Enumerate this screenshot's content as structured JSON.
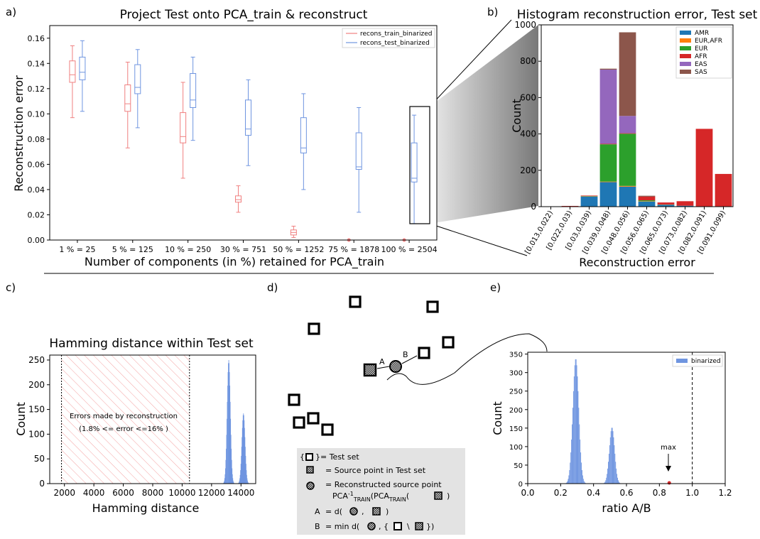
{
  "panels": {
    "a": "a)",
    "b": "b)",
    "c": "c)",
    "d": "d)",
    "e": "e)"
  },
  "chart_data": [
    {
      "id": "a",
      "type": "box",
      "title": "Project Test onto PCA_train & reconstruct",
      "xlabel": "Number of components (in %) retained for PCA_train",
      "ylabel": "Reconstruction error",
      "categories": [
        "1 % = 25",
        "5 % = 125",
        "10 % = 250",
        "30 % = 751",
        "50 % = 1252",
        "75 % = 1878",
        "100 % = 2504"
      ],
      "ylim": [
        0,
        0.17
      ],
      "yticks": [
        "0.00",
        "0.02",
        "0.04",
        "0.06",
        "0.08",
        "0.10",
        "0.12",
        "0.14",
        "0.16"
      ],
      "legend_position": "top-right",
      "series": [
        {
          "name": "recons_train_binarized",
          "color": "#f08080",
          "boxes": [
            {
              "min": 0.097,
              "q1": 0.125,
              "median": 0.131,
              "q3": 0.142,
              "max": 0.154
            },
            {
              "min": 0.073,
              "q1": 0.102,
              "median": 0.108,
              "q3": 0.123,
              "max": 0.141
            },
            {
              "min": 0.049,
              "q1": 0.077,
              "median": 0.082,
              "q3": 0.101,
              "max": 0.125
            },
            {
              "min": 0.022,
              "q1": 0.03,
              "median": 0.032,
              "q3": 0.035,
              "max": 0.043
            },
            {
              "min": 0.002,
              "q1": 0.004,
              "median": 0.006,
              "q3": 0.008,
              "max": 0.011
            },
            {
              "min": 0.0,
              "q1": 0.0,
              "median": 0.0,
              "q3": 0.0,
              "max": 0.0
            },
            {
              "min": 0.0,
              "q1": 0.0,
              "median": 0.0,
              "q3": 0.0,
              "max": 0.0
            }
          ]
        },
        {
          "name": "recons_test_binarized",
          "color": "#6f95e0",
          "boxes": [
            {
              "min": 0.102,
              "q1": 0.127,
              "median": 0.133,
              "q3": 0.145,
              "max": 0.158
            },
            {
              "min": 0.089,
              "q1": 0.116,
              "median": 0.121,
              "q3": 0.139,
              "max": 0.151
            },
            {
              "min": 0.079,
              "q1": 0.105,
              "median": 0.111,
              "q3": 0.132,
              "max": 0.145
            },
            {
              "min": 0.059,
              "q1": 0.083,
              "median": 0.088,
              "q3": 0.111,
              "max": 0.127
            },
            {
              "min": 0.04,
              "q1": 0.069,
              "median": 0.073,
              "q3": 0.097,
              "max": 0.116
            },
            {
              "min": 0.022,
              "q1": 0.056,
              "median": 0.058,
              "q3": 0.085,
              "max": 0.105
            },
            {
              "min": 0.013,
              "q1": 0.046,
              "median": 0.049,
              "q3": 0.077,
              "max": 0.099
            }
          ]
        }
      ]
    },
    {
      "id": "b",
      "type": "bar",
      "stacked": true,
      "title": "Histogram reconstruction error, Test set",
      "xlabel": "Reconstruction error",
      "ylabel": "Count",
      "categories": [
        "[0.013,0.022)",
        "[0.022,0.03)",
        "[0.03,0.039)",
        "[0.039,0.048)",
        "[0.048,0.056)",
        "[0.056,0.065)",
        "[0.065,0.073)",
        "[0.073,0.082)",
        "[0.082,0.091)",
        "[0.091,0.099)"
      ],
      "ylim": [
        0,
        1000
      ],
      "yticks": [
        "0",
        "200",
        "400",
        "600",
        "800",
        "1000"
      ],
      "legend_position": "top-right",
      "series": [
        {
          "name": "AMR",
          "color": "#1f77b4",
          "values": [
            1,
            2,
            55,
            135,
            110,
            28,
            10,
            5,
            0,
            0
          ]
        },
        {
          "name": "EUR,AFR",
          "color": "#ff7f0e",
          "values": [
            0,
            0,
            1,
            3,
            4,
            2,
            1,
            0,
            0,
            0
          ]
        },
        {
          "name": "EUR",
          "color": "#2ca02c",
          "values": [
            0,
            0,
            2,
            205,
            287,
            5,
            1,
            0,
            0,
            0
          ]
        },
        {
          "name": "AFR",
          "color": "#d62728",
          "values": [
            0,
            2,
            3,
            3,
            3,
            20,
            11,
            25,
            428,
            180
          ]
        },
        {
          "name": "EAS",
          "color": "#9467bd",
          "values": [
            0,
            0,
            0,
            408,
            95,
            0,
            0,
            0,
            0,
            0
          ]
        },
        {
          "name": "SAS",
          "color": "#8c564b",
          "values": [
            0,
            0,
            0,
            5,
            460,
            5,
            0,
            0,
            0,
            0
          ]
        }
      ]
    },
    {
      "id": "c",
      "type": "histogram",
      "title": "Hamming distance within Test set",
      "xlabel": "Hamming distance",
      "ylabel": "Count",
      "xlim": [
        1000,
        15000
      ],
      "ylim": [
        0,
        260
      ],
      "xticks": [
        "2000",
        "4000",
        "6000",
        "8000",
        "10000",
        "12000",
        "14000"
      ],
      "yticks": [
        "0",
        "50",
        "100",
        "150",
        "200",
        "250"
      ],
      "color": "#6f95e0",
      "peaks": [
        {
          "center": 13150,
          "height": 250,
          "width": 110
        },
        {
          "center": 14150,
          "height": 142,
          "width": 110
        }
      ],
      "shaded_region": {
        "x0": 1800,
        "x1": 10500
      },
      "annotation": [
        "Errors made by reconstruction",
        "(1.8% <= error <=16% )"
      ]
    },
    {
      "id": "e",
      "type": "histogram",
      "xlabel": "ratio A/B",
      "ylabel": "Count",
      "xlim": [
        0,
        1.2
      ],
      "ylim": [
        0,
        355
      ],
      "xticks": [
        "0.0",
        "0.2",
        "0.4",
        "0.6",
        "0.8",
        "1.0",
        "1.2"
      ],
      "yticks": [
        "0",
        "50",
        "100",
        "150",
        "200",
        "250",
        "300",
        "350"
      ],
      "color": "#6f95e0",
      "series_name": "binarized",
      "legend_position": "top-right",
      "peaks": [
        {
          "center": 0.29,
          "height": 338,
          "width": 0.018
        },
        {
          "center": 0.51,
          "height": 152,
          "width": 0.016
        }
      ],
      "vline": 1.0,
      "max_marker": {
        "x": 0.86,
        "label": "max"
      }
    }
  ],
  "diagram": {
    "label_A": "A",
    "label_B": "B",
    "legend": [
      {
        "pre": "{",
        "post": "}= Test set"
      },
      {
        "pre": "",
        "post": "= Source point in Test set"
      },
      {
        "pre": "",
        "post": "= Reconstructed source point"
      },
      {
        "line": "PCA",
        "sup": "-1",
        "sub1": "TRAIN",
        "mid": "(PCA",
        "sub2": "TRAIN",
        "end": "(",
        "close": ")"
      },
      {
        "lhs": "A",
        "eq": "= d(",
        ",": ",",
        "close": ")"
      },
      {
        "lhs": "B",
        "eq": "= min d(",
        "sep": ", {",
        "bs": "\\",
        "close": "})"
      }
    ]
  }
}
